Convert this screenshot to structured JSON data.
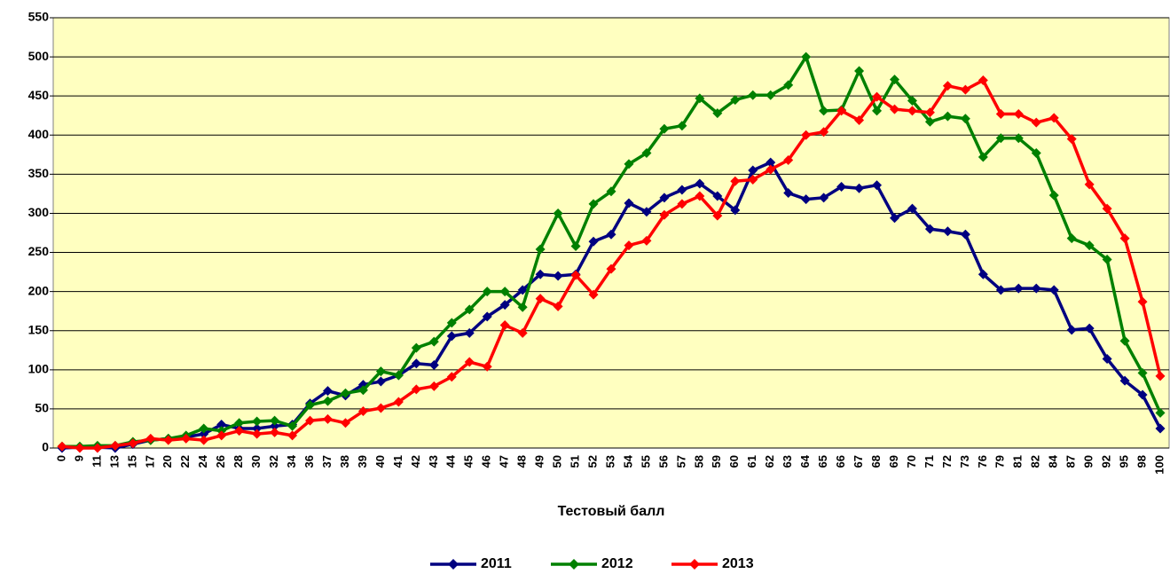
{
  "chart_data": {
    "type": "line",
    "x_label": "Тестовый балл",
    "categories": [
      "0",
      "9",
      "11",
      "13",
      "15",
      "17",
      "20",
      "22",
      "24",
      "26",
      "28",
      "30",
      "32",
      "34",
      "36",
      "37",
      "38",
      "39",
      "40",
      "41",
      "42",
      "43",
      "44",
      "45",
      "46",
      "47",
      "48",
      "49",
      "50",
      "51",
      "52",
      "53",
      "54",
      "55",
      "56",
      "57",
      "58",
      "59",
      "60",
      "61",
      "62",
      "63",
      "64",
      "65",
      "66",
      "67",
      "68",
      "69",
      "70",
      "71",
      "72",
      "73",
      "76",
      "79",
      "81",
      "82",
      "84",
      "87",
      "90",
      "92",
      "95",
      "98",
      "100"
    ],
    "series": [
      {
        "name": "2011",
        "color": "#000080",
        "values": [
          0,
          1,
          1,
          0,
          5,
          10,
          12,
          14,
          18,
          30,
          25,
          25,
          28,
          30,
          57,
          73,
          67,
          81,
          85,
          93,
          108,
          106,
          143,
          147,
          168,
          183,
          202,
          222,
          220,
          222,
          264,
          273,
          313,
          302,
          320,
          330,
          338,
          322,
          304,
          355,
          365,
          326,
          318,
          320,
          334,
          332,
          336,
          294,
          306,
          280,
          277,
          273,
          222,
          202,
          204,
          204,
          202,
          151,
          153,
          114,
          86,
          68,
          25
        ]
      },
      {
        "name": "2012",
        "color": "#008000",
        "values": [
          2,
          2,
          3,
          3,
          8,
          10,
          12,
          16,
          25,
          22,
          32,
          34,
          35,
          28,
          55,
          60,
          70,
          74,
          98,
          93,
          128,
          136,
          160,
          177,
          200,
          200,
          180,
          254,
          300,
          258,
          312,
          328,
          363,
          377,
          408,
          412,
          447,
          428,
          445,
          451,
          451,
          464,
          500,
          431,
          432,
          482,
          431,
          471,
          444,
          417,
          424,
          421,
          372,
          396,
          396,
          377,
          323,
          268,
          259,
          241,
          137,
          96,
          45
        ]
      },
      {
        "name": "2013",
        "color": "#ff0000",
        "values": [
          2,
          0,
          0,
          3,
          6,
          12,
          10,
          12,
          10,
          16,
          22,
          18,
          20,
          16,
          35,
          37,
          32,
          47,
          51,
          59,
          75,
          79,
          91,
          110,
          104,
          157,
          147,
          191,
          181,
          221,
          196,
          229,
          259,
          265,
          298,
          312,
          322,
          297,
          341,
          343,
          356,
          368,
          400,
          404,
          431,
          419,
          449,
          433,
          431,
          429,
          463,
          458,
          470,
          427,
          427,
          416,
          422,
          395,
          337,
          306,
          268,
          187,
          92
        ]
      }
    ],
    "ylim": [
      0,
      550
    ],
    "yticks": [
      0,
      50,
      100,
      150,
      200,
      250,
      300,
      350,
      400,
      450,
      500,
      550
    ],
    "grid": true,
    "legend": "bottom",
    "plot_background": "#ffffc0"
  }
}
